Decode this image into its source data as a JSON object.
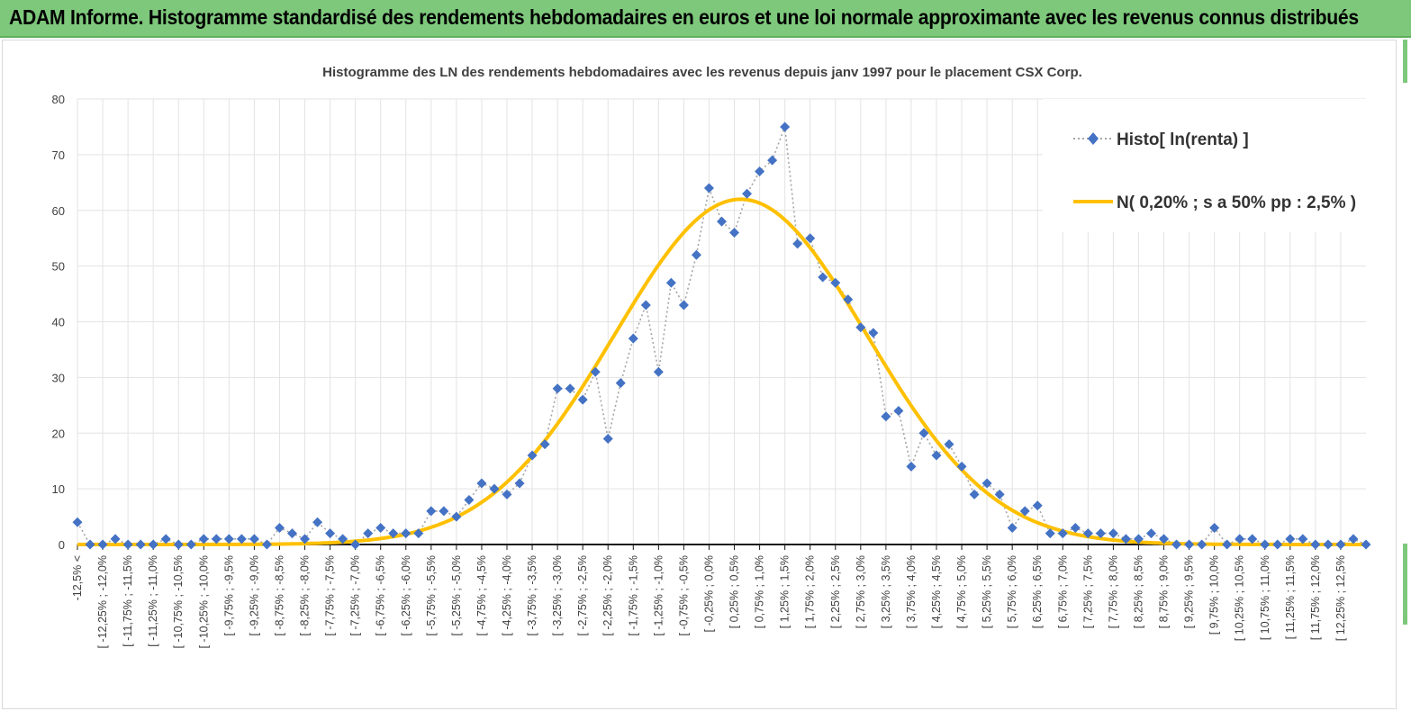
{
  "banner": {
    "title": "ADAM Informe. Histogramme standardisé des rendements hebdomadaires en euros et une loi normale approximante avec les revenus connus distribués"
  },
  "colors": {
    "banner": "#7ec87c",
    "histo_marker": "#4472c4",
    "histo_line": "#a5a5a5",
    "normal_line": "#ffc000"
  },
  "chart_data": {
    "type": "line",
    "title": "Histogramme  des LN des rendements hebdomadaires avec les revenus depuis janv 1997 pour le placement CSX Corp.",
    "xlabel": "",
    "ylabel": "",
    "ylim": [
      0,
      80
    ],
    "yticks": [
      0,
      10,
      20,
      30,
      40,
      50,
      60,
      70,
      80
    ],
    "grid": true,
    "legend_position": "top-right",
    "x_tick_labels": [
      "-12,5% <",
      "[ -12,25% ; -12,0%",
      "[ -11,75% ; -11,5%",
      "[ -11,25% ; -11,0%",
      "[ -10,75% ; -10,5%",
      "[ -10,25% ; -10,0%",
      "[ -9,75% ; -9,5%",
      "[ -9,25% ; -9,0%",
      "[ -8,75% ; -8,5%",
      "[ -8,25% ; -8,0%",
      "[ -7,75% ; -7,5%",
      "[ -7,25% ; -7,0%",
      "[ -6,75% ; -6,5%",
      "[ -6,25% ; -6,0%",
      "[ -5,75% ; -5,5%",
      "[ -5,25% ; -5,0%",
      "[ -4,75% ; -4,5%",
      "[ -4,25% ; -4,0%",
      "[ -3,75% ; -3,5%",
      "[ -3,25% ; -3,0%",
      "[ -2,75% ; -2,5%",
      "[ -2,25% ; -2,0%",
      "[ -1,75% ; -1,5%",
      "[ -1,25% ; -1,0%",
      "[ -0,75% ; -0,5%",
      "[ -0,25% ; 0,0%",
      "[ 0,25% ; 0,5%",
      "[ 0,75% ; 1,0%",
      "[ 1,25% ; 1,5%",
      "[ 1,75% ; 2,0%",
      "[ 2,25% ; 2,5%",
      "[ 2,75% ; 3,0%",
      "[ 3,25% ; 3,5%",
      "[ 3,75% ; 4,0%",
      "[ 4,25% ; 4,5%",
      "[ 4,75% ; 5,0%",
      "[ 5,25% ; 5,5%",
      "[ 5,75% ; 6,0%",
      "[ 6,25% ; 6,5%",
      "[ 6,75% ; 7,0%",
      "[ 7,25% ; 7,5%",
      "[ 7,75% ; 8,0%",
      "[ 8,25% ; 8,5%",
      "[ 8,75% ; 9,0%",
      "[ 9,25% ; 9,5%",
      "[ 9,75% ; 10,0%",
      "[ 10,25% ; 10,5%",
      "[ 10,75% ; 11,0%",
      "[ 11,25% ; 11,5%",
      "[ 11,75% ; 12,0%",
      "[ 12,25% ; 12,5%"
    ],
    "series": [
      {
        "name": "Histo[ ln(renta) ]",
        "type": "line-marker",
        "values": [
          4,
          0,
          0,
          1,
          0,
          0,
          0,
          1,
          0,
          0,
          1,
          1,
          1,
          1,
          1,
          0,
          3,
          2,
          1,
          4,
          2,
          1,
          0,
          2,
          3,
          2,
          2,
          2,
          6,
          6,
          5,
          8,
          11,
          10,
          9,
          11,
          16,
          18,
          28,
          28,
          26,
          31,
          19,
          29,
          37,
          43,
          31,
          47,
          43,
          52,
          64,
          58,
          56,
          63,
          67,
          69,
          75,
          54,
          55,
          48,
          47,
          44,
          39,
          38,
          23,
          24,
          14,
          20,
          16,
          18,
          14,
          9,
          11,
          9,
          3,
          6,
          7,
          2,
          2,
          3,
          2,
          2,
          2,
          1,
          1,
          2,
          1,
          0,
          0,
          0,
          3,
          0,
          1,
          1,
          0,
          0,
          1,
          1,
          0,
          0,
          0,
          1,
          0
        ]
      },
      {
        "name": "N( 0,20% ; s a 50% pp : 2,5% )",
        "type": "line",
        "mean_index": 52.5,
        "sigma_points": 10,
        "peak": 62
      }
    ]
  }
}
